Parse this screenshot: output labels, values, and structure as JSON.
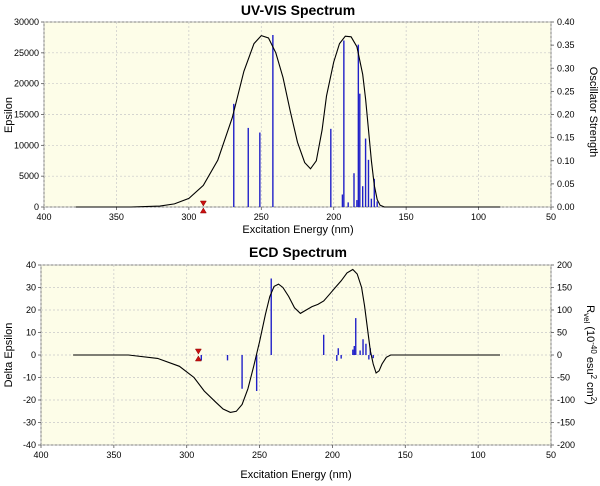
{
  "chart_data": [
    {
      "type": "line",
      "title": "UV-VIS Spectrum",
      "xlabel": "Excitation Energy (nm)",
      "ylabel": "Epsilon",
      "y2label": "Oscillator Strength",
      "xlim": [
        400,
        50
      ],
      "ylim": [
        0,
        30000
      ],
      "y2lim": [
        0,
        0.4
      ],
      "xticks": [
        "400",
        "350",
        "300",
        "250",
        "200",
        "150",
        "100",
        "50"
      ],
      "yticks": [
        "0",
        "5000",
        "10000",
        "15000",
        "20000",
        "25000",
        "30000"
      ],
      "y2ticks": [
        "0.00",
        "0.05",
        "0.10",
        "0.15",
        "0.20",
        "0.25",
        "0.30",
        "0.35",
        "0.40"
      ],
      "grid": true,
      "series": [
        {
          "kind": "curve",
          "x": [
            378,
            340,
            320,
            310,
            300,
            290,
            280,
            270,
            262,
            255,
            250,
            245,
            240,
            235,
            230,
            225,
            220,
            216,
            212,
            208,
            205,
            200,
            196,
            192,
            188,
            184,
            180,
            178,
            176,
            174,
            172,
            170,
            168,
            165,
            160,
            150,
            120,
            85
          ],
          "y": [
            0,
            0,
            150,
            500,
            1400,
            3500,
            7600,
            14500,
            22000,
            26500,
            27800,
            27400,
            25000,
            21000,
            15500,
            10500,
            7200,
            6200,
            7500,
            12500,
            18000,
            23500,
            26500,
            27700,
            27600,
            26000,
            21500,
            17500,
            12500,
            7500,
            3500,
            1200,
            300,
            0,
            0,
            0,
            0,
            0
          ]
        },
        {
          "kind": "sticks",
          "axis": "y2",
          "x": [
            269,
            259,
            251,
            242,
            202,
            194,
            193,
            190,
            186,
            184,
            183,
            182,
            180,
            178,
            176,
            174,
            172,
            170
          ],
          "f": [
            0.223,
            0.171,
            0.161,
            0.372,
            0.169,
            0.027,
            0.36,
            0.01,
            0.073,
            0.015,
            0.351,
            0.245,
            0.045,
            0.148,
            0.102,
            0.018,
            0.061,
            0.012
          ]
        },
        {
          "kind": "marker",
          "x": [
            290
          ],
          "y": [
            0
          ]
        }
      ]
    },
    {
      "type": "line",
      "title": "ECD Spectrum",
      "xlabel": "Excitation Energy (nm)",
      "ylabel": "Delta Epsilon",
      "y2label": "R",
      "y2label_sub": "vel",
      "y2label_rest": "(10",
      "y2label_exp": "-40",
      "y2label_unit": "esu",
      "y2label_exp2": "2",
      "y2label_unit2": "cm",
      "y2label_exp3": "2",
      "y2label_close": ")",
      "xlim": [
        400,
        50
      ],
      "ylim": [
        -40,
        40
      ],
      "y2lim": [
        -200,
        200
      ],
      "xticks": [
        "400",
        "350",
        "300",
        "250",
        "200",
        "150",
        "100",
        "50"
      ],
      "yticks": [
        "40",
        "30",
        "20",
        "10",
        "0",
        "-10",
        "-20",
        "-30",
        "-40"
      ],
      "y2ticks": [
        "200",
        "150",
        "100",
        "50",
        "0",
        "-50",
        "-100",
        "-150",
        "-200"
      ],
      "grid": true,
      "series": [
        {
          "kind": "curve",
          "x": [
            378,
            340,
            320,
            305,
            295,
            288,
            280,
            275,
            270,
            266,
            262,
            258,
            254,
            250,
            246,
            243,
            240,
            237,
            234,
            230,
            226,
            222,
            218,
            214,
            210,
            206,
            202,
            198,
            194,
            190,
            186,
            183,
            180,
            178,
            176,
            174,
            172,
            170,
            168,
            166,
            163,
            160,
            150,
            120,
            85
          ],
          "y": [
            0,
            0,
            -1.5,
            -5,
            -10,
            -16,
            -21,
            -24,
            -25.5,
            -25,
            -22,
            -15,
            -5,
            6,
            18,
            26,
            30.5,
            31.5,
            30,
            26,
            21,
            18.5,
            20,
            21.5,
            22.5,
            24,
            27,
            30,
            33,
            36.5,
            38,
            36,
            30,
            22,
            12,
            2,
            -4,
            -8,
            -7,
            -4,
            -1,
            0,
            0,
            0,
            0
          ]
        },
        {
          "kind": "sticks",
          "axis": "y2",
          "x": [
            290,
            272,
            262,
            252,
            242,
            206,
            197,
            196,
            194,
            186,
            185,
            184,
            181,
            179,
            177,
            175,
            174,
            172
          ],
          "f": [
            -12,
            -12,
            -75,
            -80,
            170,
            45,
            -13,
            15,
            -8,
            12,
            20,
            82,
            10,
            35,
            25,
            -10,
            15,
            -7
          ]
        },
        {
          "kind": "marker",
          "x": [
            292
          ],
          "y": [
            0
          ]
        }
      ]
    }
  ]
}
